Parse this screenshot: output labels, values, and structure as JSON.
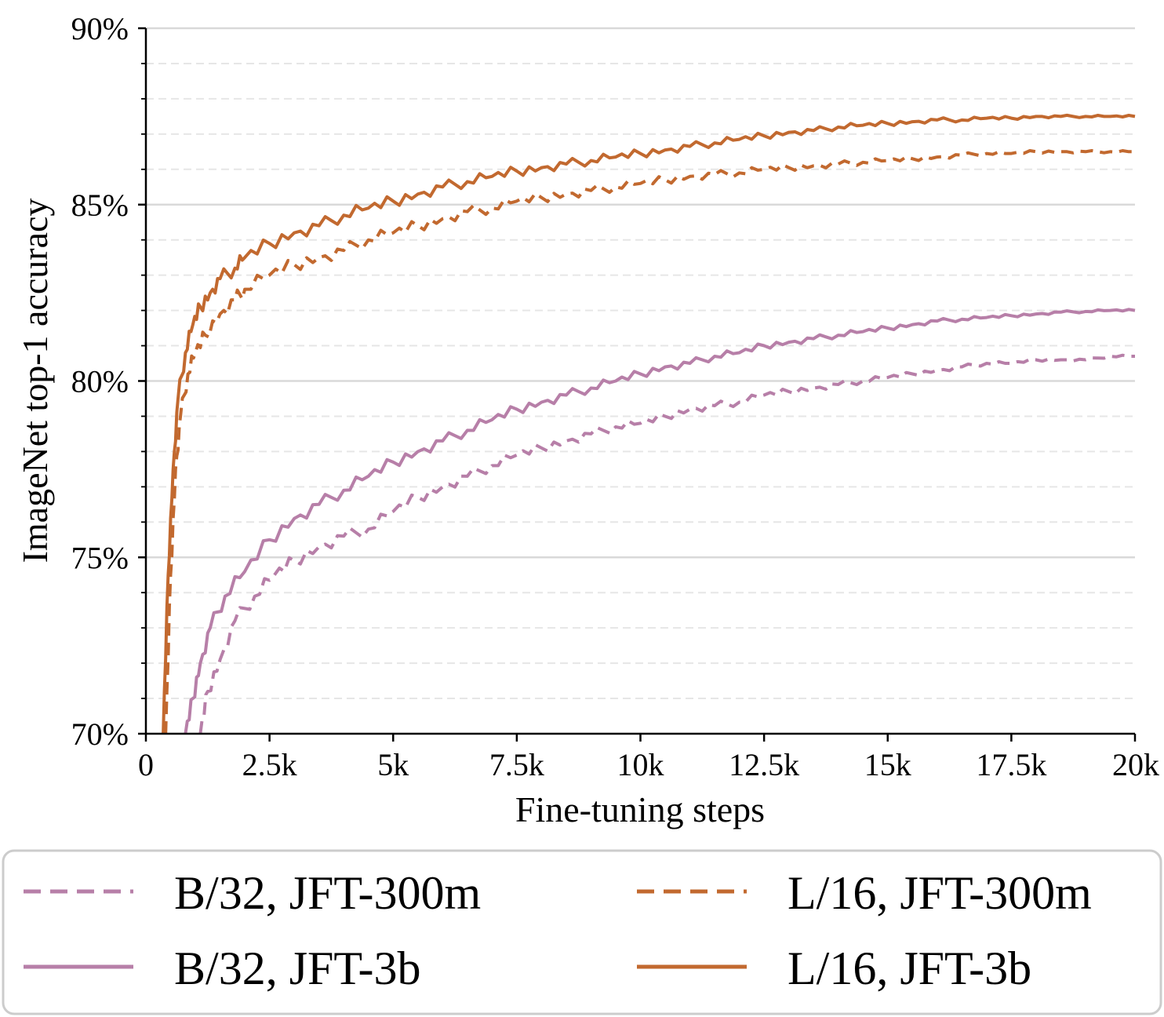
{
  "chart_data": {
    "type": "line",
    "title": "",
    "xlabel": "Fine-tuning steps",
    "ylabel": "ImageNet top-1 accuracy",
    "xlim": [
      0,
      20000
    ],
    "ylim": [
      70,
      90
    ],
    "x_ticks": [
      0,
      2500,
      5000,
      7500,
      10000,
      12500,
      15000,
      17500,
      20000
    ],
    "x_tick_labels": [
      "0",
      "2.5k",
      "5k",
      "7.5k",
      "10k",
      "12.5k",
      "15k",
      "17.5k",
      "20k"
    ],
    "y_ticks": [
      70,
      75,
      80,
      85,
      90
    ],
    "y_tick_labels": [
      "70%",
      "75%",
      "80%",
      "85%",
      "90%"
    ],
    "grid": "horizontal, major solid and minor dashed (every 1%)",
    "legend_position": "bottom, two columns",
    "series": [
      {
        "name": "B/32, JFT-300m",
        "color": "#b77fa8",
        "style": "dashed",
        "points": [
          [
            1100,
            70.0
          ],
          [
            1250,
            71.2
          ],
          [
            1500,
            72.1
          ],
          [
            1800,
            73.2
          ],
          [
            2200,
            73.9
          ],
          [
            2600,
            74.5
          ],
          [
            3000,
            74.9
          ],
          [
            3500,
            75.3
          ],
          [
            4000,
            75.6
          ],
          [
            4500,
            75.8
          ],
          [
            5000,
            76.3
          ],
          [
            5500,
            76.7
          ],
          [
            6000,
            77.0
          ],
          [
            6500,
            77.3
          ],
          [
            7000,
            77.6
          ],
          [
            7500,
            77.9
          ],
          [
            8000,
            78.1
          ],
          [
            8500,
            78.3
          ],
          [
            9000,
            78.5
          ],
          [
            9500,
            78.7
          ],
          [
            10000,
            78.8
          ],
          [
            10500,
            79.0
          ],
          [
            11000,
            79.2
          ],
          [
            11500,
            79.3
          ],
          [
            12000,
            79.4
          ],
          [
            12500,
            79.6
          ],
          [
            13000,
            79.7
          ],
          [
            13500,
            79.8
          ],
          [
            14000,
            79.9
          ],
          [
            14500,
            80.0
          ],
          [
            15000,
            80.1
          ],
          [
            15500,
            80.2
          ],
          [
            16000,
            80.3
          ],
          [
            16500,
            80.4
          ],
          [
            17000,
            80.5
          ],
          [
            17500,
            80.5
          ],
          [
            18000,
            80.6
          ],
          [
            18500,
            80.6
          ],
          [
            19000,
            80.6
          ],
          [
            19500,
            80.7
          ],
          [
            20000,
            80.7
          ]
        ]
      },
      {
        "name": "B/32, JFT-3b",
        "color": "#b77fa8",
        "style": "solid",
        "points": [
          [
            800,
            70.0
          ],
          [
            950,
            71.0
          ],
          [
            1100,
            72.0
          ],
          [
            1300,
            73.0
          ],
          [
            1600,
            73.9
          ],
          [
            2000,
            74.6
          ],
          [
            2500,
            75.5
          ],
          [
            3000,
            76.1
          ],
          [
            3500,
            76.5
          ],
          [
            4000,
            76.9
          ],
          [
            4500,
            77.3
          ],
          [
            5000,
            77.7
          ],
          [
            5500,
            78.0
          ],
          [
            6000,
            78.3
          ],
          [
            6500,
            78.6
          ],
          [
            7000,
            78.9
          ],
          [
            7500,
            79.2
          ],
          [
            8000,
            79.4
          ],
          [
            8500,
            79.6
          ],
          [
            9000,
            79.8
          ],
          [
            9500,
            80.0
          ],
          [
            10000,
            80.2
          ],
          [
            10500,
            80.4
          ],
          [
            11000,
            80.5
          ],
          [
            11500,
            80.7
          ],
          [
            12000,
            80.8
          ],
          [
            12500,
            81.0
          ],
          [
            13000,
            81.1
          ],
          [
            13500,
            81.2
          ],
          [
            14000,
            81.3
          ],
          [
            14500,
            81.4
          ],
          [
            15000,
            81.5
          ],
          [
            15500,
            81.6
          ],
          [
            16000,
            81.7
          ],
          [
            16500,
            81.75
          ],
          [
            17000,
            81.8
          ],
          [
            17500,
            81.85
          ],
          [
            18000,
            81.9
          ],
          [
            18500,
            81.95
          ],
          [
            19000,
            81.97
          ],
          [
            19500,
            82.0
          ],
          [
            20000,
            82.0
          ]
        ]
      },
      {
        "name": "L/16, JFT-300m",
        "color": "#c2692f",
        "style": "dashed",
        "points": [
          [
            400,
            70.0
          ],
          [
            500,
            74.5
          ],
          [
            600,
            77.5
          ],
          [
            700,
            79.0
          ],
          [
            850,
            80.2
          ],
          [
            1000,
            80.8
          ],
          [
            1200,
            81.3
          ],
          [
            1500,
            81.9
          ],
          [
            1800,
            82.3
          ],
          [
            2000,
            82.6
          ],
          [
            2500,
            83.0
          ],
          [
            3000,
            83.3
          ],
          [
            3500,
            83.5
          ],
          [
            4000,
            83.7
          ],
          [
            4500,
            84.0
          ],
          [
            5000,
            84.2
          ],
          [
            5500,
            84.4
          ],
          [
            6000,
            84.6
          ],
          [
            6500,
            84.8
          ],
          [
            7000,
            84.9
          ],
          [
            7500,
            85.1
          ],
          [
            8000,
            85.2
          ],
          [
            8500,
            85.3
          ],
          [
            9000,
            85.4
          ],
          [
            9500,
            85.5
          ],
          [
            10000,
            85.6
          ],
          [
            10500,
            85.7
          ],
          [
            11000,
            85.8
          ],
          [
            11500,
            85.85
          ],
          [
            12000,
            85.9
          ],
          [
            12500,
            86.0
          ],
          [
            13000,
            86.05
          ],
          [
            13500,
            86.1
          ],
          [
            14000,
            86.15
          ],
          [
            14500,
            86.2
          ],
          [
            15000,
            86.25
          ],
          [
            15500,
            86.3
          ],
          [
            16000,
            86.35
          ],
          [
            16500,
            86.4
          ],
          [
            17000,
            86.45
          ],
          [
            17500,
            86.45
          ],
          [
            18000,
            86.5
          ],
          [
            18500,
            86.5
          ],
          [
            19000,
            86.5
          ],
          [
            19500,
            86.5
          ],
          [
            20000,
            86.5
          ]
        ]
      },
      {
        "name": "L/16, JFT-3b",
        "color": "#c2692f",
        "style": "solid",
        "points": [
          [
            350,
            70.0
          ],
          [
            450,
            74.5
          ],
          [
            550,
            77.5
          ],
          [
            650,
            79.5
          ],
          [
            800,
            80.8
          ],
          [
            950,
            81.6
          ],
          [
            1100,
            82.1
          ],
          [
            1300,
            82.5
          ],
          [
            1500,
            82.9
          ],
          [
            1800,
            83.2
          ],
          [
            2000,
            83.5
          ],
          [
            2500,
            83.9
          ],
          [
            3000,
            84.2
          ],
          [
            3500,
            84.4
          ],
          [
            4000,
            84.7
          ],
          [
            4500,
            84.9
          ],
          [
            5000,
            85.1
          ],
          [
            5500,
            85.3
          ],
          [
            6000,
            85.5
          ],
          [
            6500,
            85.65
          ],
          [
            7000,
            85.8
          ],
          [
            7500,
            85.95
          ],
          [
            8000,
            86.05
          ],
          [
            8500,
            86.15
          ],
          [
            9000,
            86.25
          ],
          [
            9500,
            86.35
          ],
          [
            10000,
            86.45
          ],
          [
            10500,
            86.55
          ],
          [
            11000,
            86.65
          ],
          [
            11500,
            86.75
          ],
          [
            12000,
            86.85
          ],
          [
            12500,
            86.95
          ],
          [
            13000,
            87.05
          ],
          [
            13500,
            87.1
          ],
          [
            14000,
            87.2
          ],
          [
            14500,
            87.25
          ],
          [
            15000,
            87.3
          ],
          [
            15500,
            87.35
          ],
          [
            16000,
            87.4
          ],
          [
            16500,
            87.4
          ],
          [
            17000,
            87.45
          ],
          [
            17500,
            87.45
          ],
          [
            18000,
            87.5
          ],
          [
            18500,
            87.5
          ],
          [
            19000,
            87.5
          ],
          [
            19500,
            87.5
          ],
          [
            20000,
            87.5
          ]
        ]
      }
    ]
  },
  "legend": {
    "items": [
      {
        "label": "B/32, JFT-300m",
        "color": "#b77fa8",
        "style": "dashed"
      },
      {
        "label": "L/16, JFT-300m",
        "color": "#c2692f",
        "style": "dashed"
      },
      {
        "label": "B/32, JFT-3b",
        "color": "#b77fa8",
        "style": "solid"
      },
      {
        "label": "L/16, JFT-3b",
        "color": "#c2692f",
        "style": "solid"
      }
    ]
  }
}
